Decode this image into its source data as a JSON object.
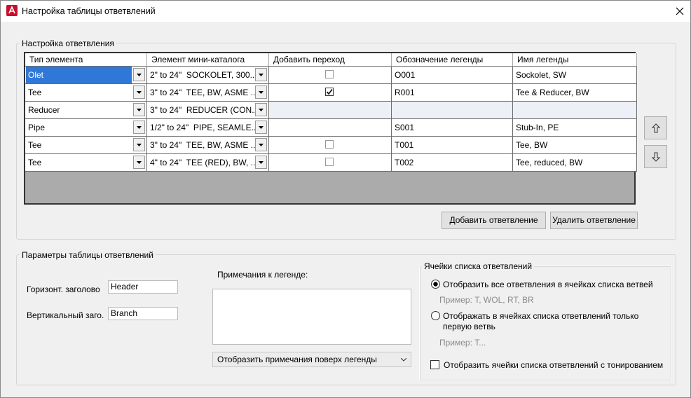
{
  "window": {
    "title": "Настройка таблицы ответвлений"
  },
  "branch_setup": {
    "title": "Настройка ответвления",
    "columns": [
      "Тип элемента",
      "Элемент мини-каталога",
      "Добавить переход",
      "Обозначение легенды",
      "Имя легенды"
    ],
    "rows": [
      {
        "type": "Olet",
        "item": "2\" to 24\"  SOCKOLET, 300...",
        "add_transition": false,
        "legend_code": "O001",
        "legend_name": "Sockolet, SW",
        "selected": true,
        "disabled": false
      },
      {
        "type": "Tee",
        "item": "3\" to 24\"  TEE, BW, ASME ...",
        "add_transition": true,
        "legend_code": "R001",
        "legend_name": "Tee & Reducer, BW",
        "selected": false,
        "disabled": false
      },
      {
        "type": "Reducer",
        "item": "3\" to 24\"  REDUCER (CON...",
        "add_transition": null,
        "legend_code": null,
        "legend_name": null,
        "selected": false,
        "disabled": true
      },
      {
        "type": "Pipe",
        "item": "1/2\" to 24\"  PIPE, SEAMLE...",
        "add_transition": null,
        "legend_code": "S001",
        "legend_name": "Stub-In, PE",
        "selected": false,
        "disabled": false
      },
      {
        "type": "Tee",
        "item": "3\" to 24\"  TEE, BW, ASME ...",
        "add_transition": false,
        "legend_code": "T001",
        "legend_name": "Tee, BW",
        "selected": false,
        "disabled": false
      },
      {
        "type": "Tee",
        "item": "4\" to 24\"  TEE (RED), BW, ...",
        "add_transition": false,
        "legend_code": "T002",
        "legend_name": "Tee, reduced, BW",
        "selected": false,
        "disabled": false
      }
    ],
    "add_button": "Добавить ответвление",
    "delete_button": "Удалить ответвление"
  },
  "table_params": {
    "title": "Параметры таблицы ответвлений",
    "horizontal_label": "Горизонт. заголово",
    "horizontal_value": "Header",
    "vertical_label": "Вертикальный заго.",
    "vertical_value": "Branch",
    "notes_label": "Примечания к легенде:",
    "notes_position": "Отобразить примечания поверх легенды",
    "cells_group": {
      "title": "Ячейки списка ответвлений",
      "option_all": "Отобразить все ответвления в ячейках списка ветвей",
      "option_all_example": "Пример: T, WOL, RT, BR",
      "option_all_selected": true,
      "option_first": "Отображать в ячейках списка ответвлений только первую ветвь",
      "option_first_example": "Пример: T...",
      "option_first_selected": false,
      "shaded": "Отобразить ячейки списка ответвлений с тонированием",
      "shaded_checked": false
    }
  }
}
